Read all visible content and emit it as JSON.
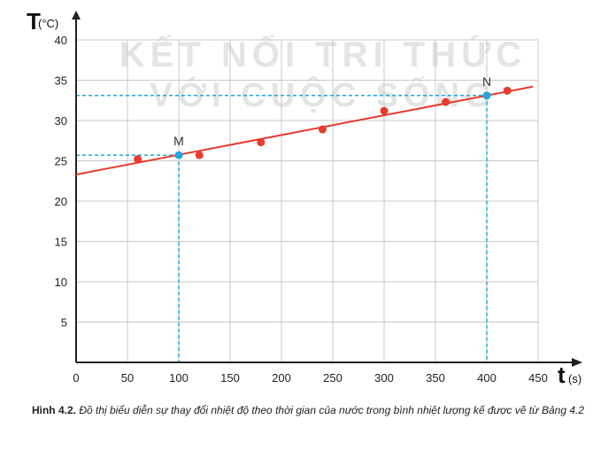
{
  "chart_data": {
    "type": "scatter",
    "y_symbol": "T",
    "y_unit": "(°C)",
    "x_symbol": "t",
    "x_unit": "(s)",
    "xlim": [
      0,
      450
    ],
    "ylim": [
      0,
      40
    ],
    "x_ticks": [
      0,
      50,
      100,
      150,
      200,
      250,
      300,
      350,
      400,
      450
    ],
    "y_ticks": [
      5,
      10,
      15,
      20,
      25,
      30,
      35,
      40
    ],
    "grid": true,
    "series": [
      {
        "points": [
          {
            "x": 60,
            "y": 25.2
          },
          {
            "x": 120,
            "y": 25.7
          },
          {
            "x": 180,
            "y": 27.3
          },
          {
            "x": 240,
            "y": 28.9
          },
          {
            "x": 300,
            "y": 31.2
          },
          {
            "x": 360,
            "y": 32.3
          },
          {
            "x": 420,
            "y": 33.7
          }
        ],
        "color": "#e63b2e"
      }
    ],
    "fit_line": {
      "x0": 0,
      "y0": 23.3,
      "x1": 445,
      "y1": 34.2,
      "color": "#e63b2e"
    },
    "marked_points": [
      {
        "label": "M",
        "x": 100,
        "y": 25.7,
        "color": "#1ea8df"
      },
      {
        "label": "N",
        "x": 400,
        "y": 33.1,
        "color": "#1ea8df"
      }
    ]
  },
  "watermark": {
    "line1": "KẾT NỐI TRI THỨC",
    "line2": "VỚI CUỘC SỐNG"
  },
  "caption": {
    "label": "Hình 4.2.",
    "text": "Đồ thị biểu diễn sự thay đổi nhiệt độ theo thời gian của nước trong bình nhiệt lượng kế được vẽ từ Bảng 4.2"
  },
  "colors": {
    "axis": "#222222",
    "grid": "#c8c8c8",
    "data": "#e63b2e",
    "guide": "#1ea8df"
  }
}
